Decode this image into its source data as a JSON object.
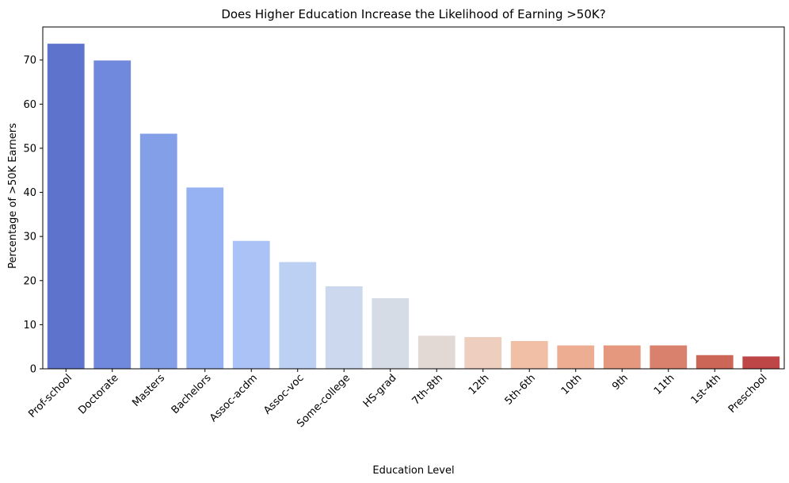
{
  "chart_data": {
    "type": "bar",
    "title": "Does Higher Education Increase the Likelihood of Earning >50K?",
    "xlabel": "Education Level",
    "ylabel": "Percentage of >50K Earners",
    "ylim": [
      0,
      77.5
    ],
    "yticks": [
      0,
      10,
      20,
      30,
      40,
      50,
      60,
      70
    ],
    "grid": false,
    "legend": "none",
    "categories": [
      "Prof-school",
      "Doctorate",
      "Masters",
      "Bachelors",
      "Assoc-acdm",
      "Assoc-voc",
      "Some-college",
      "HS-grad",
      "7th-8th",
      "12th",
      "5th-6th",
      "10th",
      "9th",
      "11th",
      "1st-4th",
      "Preschool"
    ],
    "values": [
      73.7,
      69.9,
      53.3,
      41.1,
      29.0,
      24.2,
      18.7,
      16.0,
      7.5,
      7.2,
      6.3,
      5.3,
      5.3,
      5.3,
      3.1,
      2.8
    ],
    "colors": [
      "#5e74cc",
      "#7189dc",
      "#839fe8",
      "#97b2f2",
      "#aac2f6",
      "#bcd0f3",
      "#cbd8ee",
      "#d6dce6",
      "#e3d9d4",
      "#eecebe",
      "#f1bea6",
      "#ecad93",
      "#e6987f",
      "#d9816c",
      "#cc6656",
      "#bf4647"
    ]
  }
}
